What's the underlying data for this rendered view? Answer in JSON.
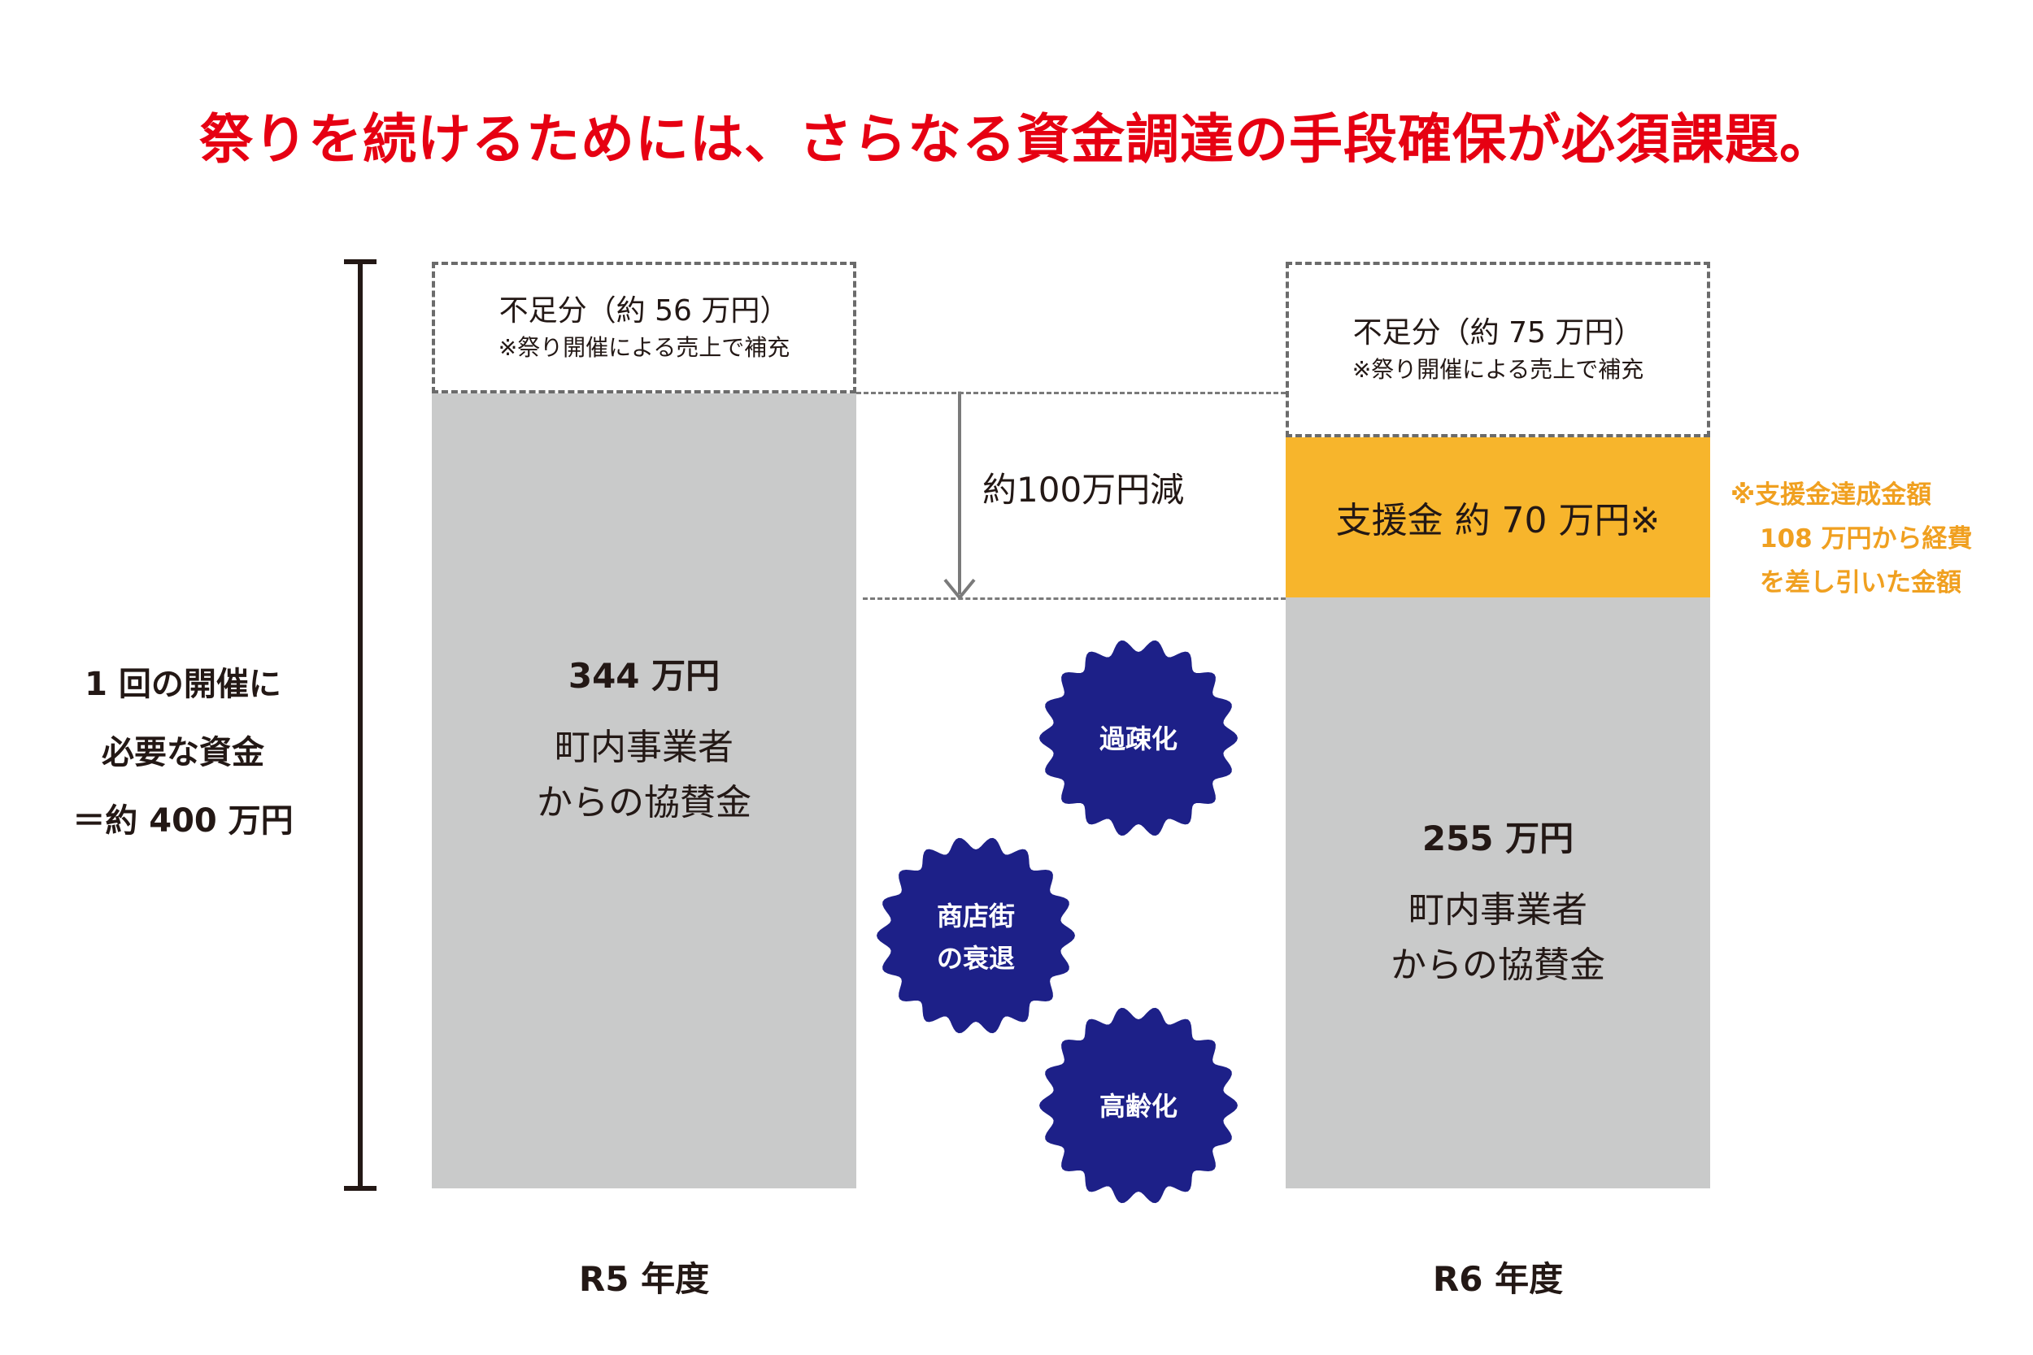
{
  "title": "祭りを続けるためには、さらなる資金調達の手段確保が必須課題。",
  "colors": {
    "title": "#e60012",
    "sponsorship_bar": "#c9caca",
    "support_bar": "#f7b52c",
    "support_note": "#f0a020",
    "badge": "#1d2088",
    "text": "#231815"
  },
  "total_label": [
    "1 回の開催に",
    "必要な資金",
    "＝約 400 万円"
  ],
  "reduction_label": "約100万円減",
  "support_note": [
    "※支援金達成金額",
    "108 万円から経費",
    "を差し引いた金額"
  ],
  "badges": [
    {
      "lines": [
        "過疎化"
      ]
    },
    {
      "lines": [
        "商店街",
        "の衰退"
      ]
    },
    {
      "lines": [
        "高齢化"
      ]
    }
  ],
  "chart_data": {
    "type": "bar",
    "stacked": true,
    "title": "祭りを続けるためには、さらなる資金調達の手段確保が必須課題。",
    "unit": "万円",
    "categories": [
      "R5 年度",
      "R6 年度"
    ],
    "total": 400,
    "series": [
      {
        "values": [
          344,
          255
        ],
        "labels": [
          "344 万円",
          "255 万円"
        ],
        "description": [
          "町内事業者",
          "からの協賛金"
        ]
      },
      {
        "values": [
          0,
          70
        ],
        "labels": [
          "",
          "支援金 約 70 万円※"
        ]
      },
      {
        "values": [
          56,
          75
        ],
        "labels": [
          "不足分（約 56 万円）",
          "不足分（約 75 万円）"
        ],
        "note": "※祭り開催による売上で補充",
        "style": "dashed"
      }
    ]
  }
}
